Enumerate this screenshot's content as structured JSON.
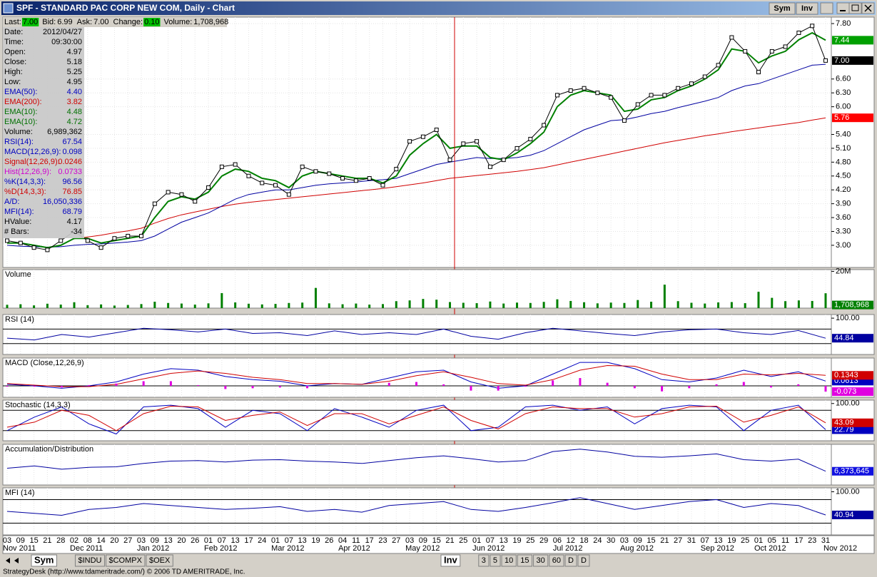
{
  "window": {
    "title": "SPF - STANDARD PAC CORP NEW COM, Daily - Chart",
    "buttons": [
      "Sym",
      "Inv"
    ]
  },
  "quote": [
    {
      "label": "Last:",
      "value": "7.00",
      "highlight": "#00c000"
    },
    {
      "label": "Bid:",
      "value": "6.99"
    },
    {
      "label": "Ask:",
      "value": "7.00"
    },
    {
      "label": "Change:",
      "value": "0.10",
      "highlight": "#00c000"
    },
    {
      "label": "Volume:",
      "value": "1,708,968"
    }
  ],
  "data_window": [
    {
      "label": "Date:",
      "value": "2012/04/27",
      "color": "#000000"
    },
    {
      "label": "Time:",
      "value": "09:30:00",
      "color": "#000000"
    },
    {
      "label": "Open:",
      "value": "4.97",
      "color": "#000000"
    },
    {
      "label": "Close:",
      "value": "5.18",
      "color": "#000000"
    },
    {
      "label": "High:",
      "value": "5.25",
      "color": "#000000"
    },
    {
      "label": "Low:",
      "value": "4.95",
      "color": "#000000"
    },
    {
      "label": "EMA(50):",
      "value": "4.40",
      "color": "#0000c0"
    },
    {
      "label": "EMA(200):",
      "value": "3.82",
      "color": "#d00000"
    },
    {
      "label": "EMA(10):",
      "value": "4.48",
      "color": "#007000"
    },
    {
      "label": "EMA(10):",
      "value": "4.72",
      "color": "#007000"
    },
    {
      "label": "Volume:",
      "value": "6,989,362",
      "color": "#000000"
    },
    {
      "label": "RSI(14):",
      "value": "67.54",
      "color": "#0000c0"
    },
    {
      "label": "MACD(12,26,9):",
      "value": "0.098",
      "color": "#0000c0"
    },
    {
      "label": "Signal(12,26,9):",
      "value": "0.0246",
      "color": "#d00000"
    },
    {
      "label": "Hist(12,26,9):",
      "value": "0.0733",
      "color": "#d000d0"
    },
    {
      "label": "%K(14,3,3):",
      "value": "96.56",
      "color": "#0000c0"
    },
    {
      "label": "%D(14,3,3):",
      "value": "76.85",
      "color": "#d00000"
    },
    {
      "label": "A/D:",
      "value": "16,050,336",
      "color": "#0000c0"
    },
    {
      "label": "MFI(14):",
      "value": "68.79",
      "color": "#0000c0"
    },
    {
      "label": "HValue:",
      "value": "4.17",
      "color": "#000000"
    },
    {
      "label": "# Bars:",
      "value": "-34",
      "color": "#000000"
    }
  ],
  "price_panel": {
    "ylim": [
      2.52,
      7.94
    ],
    "yticks": [
      {
        "value": 7.8,
        "label": "7.80"
      },
      {
        "value": 6.6,
        "label": "6.60"
      },
      {
        "value": 6.3,
        "label": "6.30"
      },
      {
        "value": 6.0,
        "label": "6.00"
      },
      {
        "value": 5.4,
        "label": "5.40"
      },
      {
        "value": 5.1,
        "label": "5.10"
      },
      {
        "value": 4.8,
        "label": "4.80"
      },
      {
        "value": 4.5,
        "label": "4.50"
      },
      {
        "value": 4.2,
        "label": "4.20"
      },
      {
        "value": 3.9,
        "label": "3.90"
      },
      {
        "value": 3.6,
        "label": "3.60"
      },
      {
        "value": 3.3,
        "label": "3.30"
      },
      {
        "value": 3.0,
        "label": "3.00"
      }
    ],
    "markers": [
      {
        "value": 7.44,
        "label": "7.44",
        "color": "#00a000"
      },
      {
        "value": 7.0,
        "label": "7.00",
        "color": "#000000"
      },
      {
        "value": 5.76,
        "label": "5.76",
        "color": "#ff0000"
      }
    ],
    "series": [
      {
        "color": "#d00000",
        "values": [
          null,
          null,
          null,
          null,
          null,
          3.14,
          3.18,
          3.22,
          3.27,
          3.31,
          3.37,
          3.48,
          3.58,
          3.66,
          3.72,
          3.78,
          3.84,
          3.89,
          3.93,
          3.96,
          3.99,
          4.02,
          4.05,
          4.08,
          4.11,
          4.14,
          4.17,
          4.2,
          4.23,
          4.27,
          4.31,
          4.35,
          4.4,
          4.45,
          4.48,
          4.51,
          4.54,
          4.57,
          4.6,
          4.64,
          4.68,
          4.74,
          4.8,
          4.86,
          4.92,
          4.98,
          5.04,
          5.1,
          5.16,
          5.22,
          5.27,
          5.32,
          5.37,
          5.41,
          5.46,
          5.5,
          5.54,
          5.58,
          5.62,
          5.66,
          5.71,
          5.76
        ]
      },
      {
        "color": "#0000a0",
        "values": [
          3.0,
          2.98,
          2.97,
          2.96,
          2.97,
          3.0,
          3.02,
          3.03,
          3.05,
          3.07,
          3.1,
          3.2,
          3.35,
          3.5,
          3.6,
          3.7,
          3.85,
          4.0,
          4.1,
          4.15,
          4.2,
          4.2,
          4.25,
          4.3,
          4.33,
          4.35,
          4.37,
          4.4,
          4.42,
          4.45,
          4.55,
          4.65,
          4.75,
          4.8,
          4.85,
          4.9,
          4.88,
          4.88,
          4.9,
          4.95,
          5.05,
          5.2,
          5.35,
          5.5,
          5.6,
          5.7,
          5.72,
          5.78,
          5.85,
          5.9,
          5.98,
          6.05,
          6.12,
          6.2,
          6.35,
          6.45,
          6.5,
          6.6,
          6.7,
          6.8,
          6.9,
          6.92
        ]
      },
      {
        "color": "#008000",
        "values": [
          3.05,
          3.05,
          3.0,
          2.95,
          3.0,
          3.15,
          3.15,
          3.05,
          3.1,
          3.15,
          3.2,
          3.6,
          3.95,
          4.05,
          4.0,
          4.15,
          4.5,
          4.65,
          4.6,
          4.45,
          4.4,
          4.25,
          4.5,
          4.6,
          4.55,
          4.5,
          4.45,
          4.45,
          4.35,
          4.5,
          4.95,
          5.2,
          5.4,
          5.1,
          5.15,
          5.15,
          4.9,
          4.85,
          5.0,
          5.2,
          5.45,
          6.0,
          6.25,
          6.35,
          6.3,
          6.25,
          5.9,
          5.95,
          6.15,
          6.2,
          6.35,
          6.45,
          6.6,
          6.8,
          7.25,
          7.2,
          6.95,
          7.1,
          7.2,
          7.45,
          7.6,
          7.44
        ]
      },
      {
        "color": "#000000",
        "values": [
          3.1,
          3.05,
          2.95,
          2.9,
          3.1,
          3.3,
          3.1,
          2.95,
          3.15,
          3.2,
          3.2,
          3.9,
          4.15,
          4.1,
          3.95,
          4.25,
          4.7,
          4.75,
          4.5,
          4.35,
          4.3,
          4.1,
          4.7,
          4.6,
          4.55,
          4.45,
          4.4,
          4.45,
          4.3,
          4.65,
          5.25,
          5.35,
          5.5,
          4.85,
          5.2,
          5.25,
          4.7,
          4.85,
          5.1,
          5.3,
          5.6,
          6.25,
          6.35,
          6.4,
          6.3,
          6.2,
          5.7,
          6.05,
          6.25,
          6.25,
          6.4,
          6.5,
          6.65,
          6.9,
          7.5,
          7.2,
          6.75,
          7.2,
          7.3,
          7.6,
          7.75,
          7.0
        ]
      }
    ]
  },
  "volume_panel": {
    "title": "Volume",
    "ylim": [
      0,
      21000000
    ],
    "yticks": [
      {
        "value": 20000000,
        "label": "20M"
      }
    ],
    "color": "#008000",
    "current": {
      "value": 1708968,
      "label": "1,708,968"
    },
    "values": [
      1800000,
      2100000,
      1500000,
      2400000,
      1900000,
      3200000,
      1600000,
      2000000,
      1400000,
      1700000,
      2200000,
      3500000,
      2800000,
      2500000,
      1900000,
      2600000,
      8200000,
      3100000,
      2400000,
      2000000,
      2300000,
      2800000,
      3000000,
      11000000,
      2600000,
      2100000,
      2500000,
      1900000,
      2200000,
      3800000,
      4200000,
      5000000,
      4600000,
      3300000,
      2900000,
      2700000,
      3600000,
      2500000,
      3000000,
      2800000,
      3400000,
      4800000,
      3900000,
      3200000,
      2600000,
      3000000,
      2800000,
      4400000,
      3500000,
      12800000,
      3800000,
      2900000,
      2500000,
      3100000,
      3300000,
      2700000,
      8900000,
      5600000,
      3800000,
      4200000,
      3900000,
      8100000
    ]
  },
  "rsi_panel": {
    "title": "RSI (14)",
    "ylim": [
      0,
      110
    ],
    "yticks": [
      {
        "value": 100,
        "label": "100.00"
      }
    ],
    "levels": [
      70,
      30
    ],
    "series": [
      {
        "color": "#0000a0",
        "values": [
          45,
          40,
          55,
          48,
          60,
          72,
          68,
          62,
          70,
          58,
          60,
          52,
          65,
          55,
          60,
          55,
          70,
          50,
          42,
          60,
          72,
          65,
          58,
          52,
          62,
          68,
          70,
          60,
          55,
          66,
          44.84
        ]
      }
    ]
  },
  "macd_panel": {
    "title": "MACD (Close,12,26,9)",
    "ylim": [
      -0.145,
      0.355
    ],
    "levels": [
      0
    ],
    "series": [
      {
        "color": "#0000c0",
        "values": [
          0.02,
          0.0,
          -0.03,
          0.0,
          0.05,
          0.15,
          0.22,
          0.2,
          0.12,
          0.08,
          0.06,
          0.0,
          0.03,
          0.02,
          0.1,
          0.18,
          0.2,
          0.05,
          -0.03,
          0.0,
          0.15,
          0.3,
          0.3,
          0.22,
          0.08,
          0.05,
          0.1,
          0.2,
          0.12,
          0.18,
          0.0613
        ]
      },
      {
        "color": "#d00000",
        "values": [
          0.03,
          0.01,
          -0.01,
          -0.01,
          0.02,
          0.09,
          0.16,
          0.19,
          0.16,
          0.11,
          0.08,
          0.03,
          0.03,
          0.02,
          0.06,
          0.13,
          0.18,
          0.11,
          0.03,
          0.01,
          0.08,
          0.2,
          0.26,
          0.25,
          0.15,
          0.08,
          0.08,
          0.15,
          0.14,
          0.16,
          0.1343
        ]
      },
      {
        "color": "#e000e0",
        "bars": true,
        "values": [
          -0.01,
          -0.01,
          -0.02,
          0.01,
          0.03,
          0.06,
          0.06,
          0.01,
          -0.04,
          -0.03,
          -0.02,
          -0.03,
          0.0,
          0.0,
          0.04,
          0.05,
          0.02,
          -0.06,
          -0.06,
          -0.01,
          0.07,
          0.1,
          0.04,
          -0.03,
          -0.07,
          -0.03,
          0.02,
          0.05,
          -0.02,
          0.02,
          -0.073
        ]
      }
    ]
  },
  "stoch_panel": {
    "title": "Stochastic (14,3,3)",
    "ylim": [
      -10,
      110
    ],
    "yticks": [
      {
        "value": 100,
        "label": "100.00"
      }
    ],
    "levels": [
      80,
      20
    ],
    "series": [
      {
        "color": "#0000c0",
        "values": [
          20,
          60,
          90,
          40,
          10,
          90,
          95,
          85,
          30,
          80,
          70,
          20,
          85,
          60,
          30,
          80,
          95,
          20,
          30,
          90,
          95,
          80,
          90,
          40,
          85,
          95,
          90,
          20,
          80,
          95,
          22.79
        ]
      },
      {
        "color": "#d00000",
        "values": [
          30,
          45,
          80,
          65,
          20,
          70,
          92,
          90,
          50,
          65,
          75,
          35,
          70,
          70,
          40,
          65,
          90,
          50,
          25,
          70,
          90,
          85,
          85,
          60,
          70,
          90,
          92,
          45,
          65,
          90,
          43.09
        ]
      }
    ]
  },
  "ad_panel": {
    "title": "Accumulation/Distribution",
    "ylim": [
      3500000,
      12000000
    ],
    "current": {
      "value": 6373645,
      "label": "6,373,645"
    },
    "series": [
      {
        "color": "#0000a0",
        "values": [
          7000000,
          7500000,
          6800000,
          7200000,
          7300000,
          8000000,
          8500000,
          8600000,
          8300000,
          8700000,
          8800000,
          8500000,
          8300000,
          8000000,
          8600000,
          9200000,
          9600000,
          9000000,
          8300000,
          8600000,
          10500000,
          11000000,
          10400000,
          9500000,
          9300000,
          9600000,
          10000000,
          8800000,
          8500000,
          8900000,
          6373645
        ]
      }
    ]
  },
  "mfi_panel": {
    "title": "MFI (14)",
    "ylim": [
      -10,
      110
    ],
    "yticks": [
      {
        "value": 100,
        "label": "100.00"
      }
    ],
    "levels": [
      80,
      20
    ],
    "series": [
      {
        "color": "#0000a0",
        "values": [
          50,
          45,
          40,
          55,
          60,
          70,
          65,
          60,
          55,
          58,
          62,
          50,
          55,
          48,
          65,
          70,
          75,
          55,
          50,
          60,
          72,
          85,
          70,
          55,
          65,
          75,
          80,
          60,
          70,
          65,
          40.94
        ]
      }
    ]
  },
  "x_axis": {
    "months": [
      {
        "label": "Nov 2011",
        "days": [
          "03",
          "09",
          "15",
          "21",
          "28"
        ]
      },
      {
        "label": "Dec 2011",
        "days": [
          "02",
          "08",
          "14",
          "20",
          "27"
        ]
      },
      {
        "label": "Jan 2012",
        "days": [
          "03",
          "09",
          "13",
          "20",
          "26"
        ]
      },
      {
        "label": "Feb 2012",
        "days": [
          "01",
          "07",
          "13",
          "17",
          "24"
        ]
      },
      {
        "label": "Mar 2012",
        "days": [
          "01",
          "07",
          "13",
          "19",
          "26"
        ]
      },
      {
        "label": "Apr 2012",
        "days": [
          "04",
          "11",
          "17",
          "23",
          "27"
        ]
      },
      {
        "label": "May 2012",
        "days": [
          "03",
          "09",
          "15",
          "21",
          "25"
        ]
      },
      {
        "label": "Jun 2012",
        "days": [
          "01",
          "07",
          "13",
          "19",
          "25",
          "29"
        ]
      },
      {
        "label": "Jul 2012",
        "days": [
          "06",
          "12",
          "18",
          "24",
          "30"
        ]
      },
      {
        "label": "Aug 2012",
        "days": [
          "03",
          "09",
          "15",
          "21",
          "27",
          "31"
        ]
      },
      {
        "label": "Sep 2012",
        "days": [
          "07",
          "13",
          "19",
          "25"
        ]
      },
      {
        "label": "Oct 2012",
        "days": [
          "01",
          "05",
          "11",
          "17",
          "23",
          "31"
        ]
      },
      {
        "label": "Nov 2012",
        "days": []
      }
    ]
  },
  "tabs": {
    "left": [
      "Sym",
      "$INDU",
      "$COMPX",
      "$OEX"
    ],
    "right": [
      "Inv",
      "3",
      "5",
      "10",
      "15",
      "30",
      "60",
      "D",
      "D"
    ]
  },
  "status": "StrategyDesk (http://www.tdameritrade.com/) © 2006 TD AMERITRADE, Inc."
}
